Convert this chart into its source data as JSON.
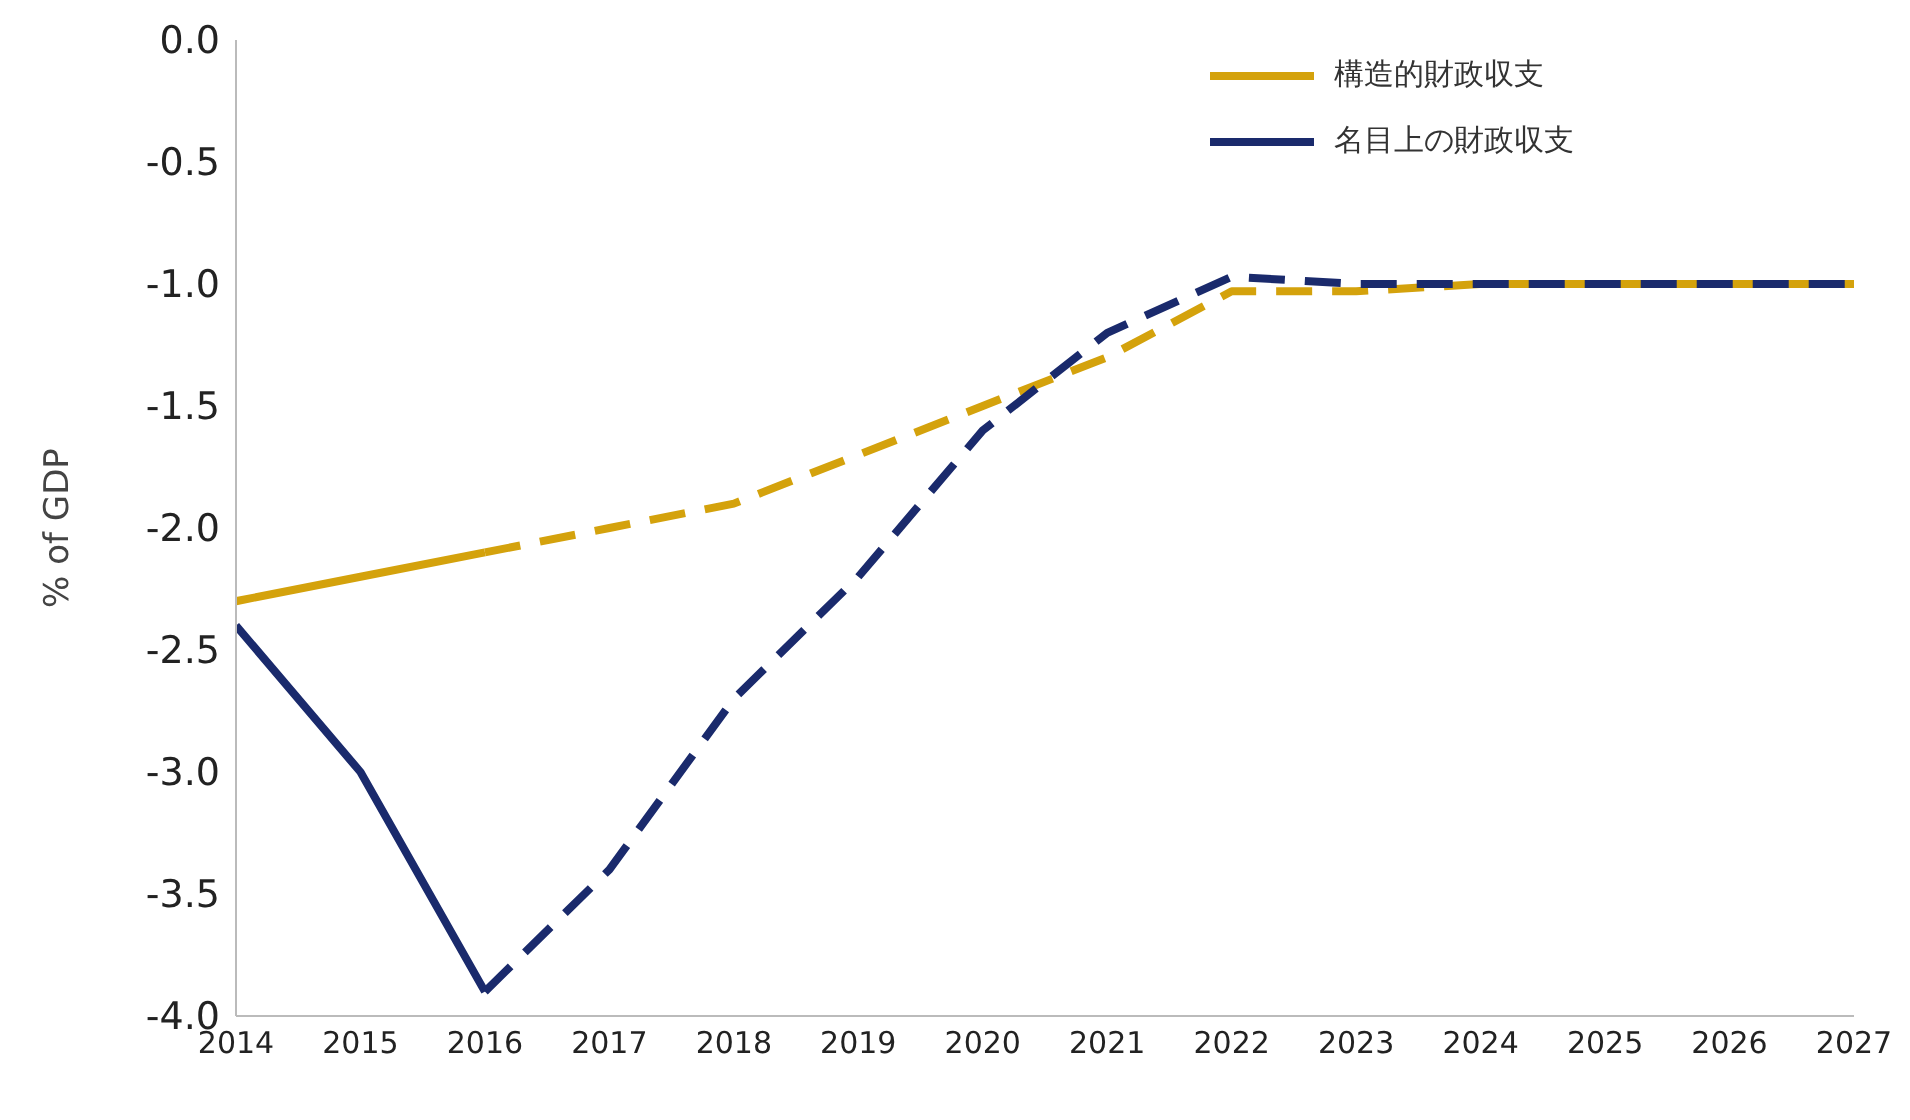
{
  "chart_data": {
    "type": "line",
    "ylabel": "% of GDP",
    "xlim": [
      2014,
      2027
    ],
    "xticks": [
      2014,
      2015,
      2016,
      2017,
      2018,
      2019,
      2020,
      2021,
      2022,
      2023,
      2024,
      2025,
      2026,
      2027
    ],
    "ylim": [
      -4.0,
      0.0
    ],
    "yticks": [
      {
        "value": -4,
        "label": "-4.0"
      },
      {
        "value": -3.5,
        "label": "-3.5"
      },
      {
        "value": -3,
        "label": "-3.0"
      },
      {
        "value": -2.5,
        "label": "-2.5"
      },
      {
        "value": -2,
        "label": "-2.0"
      },
      {
        "value": -1.5,
        "label": "-1.5"
      },
      {
        "value": -1,
        "label": "-1.0"
      },
      {
        "value": -0.5,
        "label": "-0.5"
      },
      {
        "value": 0,
        "label": "0.0"
      }
    ],
    "grid": false,
    "legend": "top right",
    "marker": "none",
    "series": [
      {
        "name": "構造的財政収支",
        "color": "#d4a20c",
        "line_style": "solid",
        "x": [
          2014,
          2015,
          2016
        ],
        "values": [
          -2.3,
          -2.2,
          -2.1
        ]
      },
      {
        "name": "名目上の財政収支",
        "color": "#1a2a6c",
        "line_style": "solid",
        "x": [
          2014,
          2015,
          2016
        ],
        "values": [
          -2.4,
          -3.0,
          -3.9
        ]
      },
      {
        "color": "#d4a20c",
        "line_style": "dashed",
        "x": [
          2016,
          2017,
          2018,
          2019,
          2020,
          2021,
          2022,
          2023,
          2024,
          2025,
          2026,
          2027
        ],
        "values": [
          -2.1,
          -2.0,
          -1.9,
          -1.7,
          -1.5,
          -1.3,
          -1.03,
          -1.03,
          -1.0,
          -1.0,
          -1.0,
          -1.0
        ]
      },
      {
        "color": "#1a2a6c",
        "line_style": "dashed",
        "x": [
          2016,
          2017,
          2018,
          2019,
          2020,
          2021,
          2022,
          2023,
          2024,
          2025,
          2026,
          2027
        ],
        "values": [
          -3.9,
          -3.4,
          -2.7,
          -2.2,
          -1.6,
          -1.2,
          -0.97,
          -1.0,
          -1.0,
          -1.0,
          -1.0,
          -1.0
        ]
      }
    ]
  }
}
